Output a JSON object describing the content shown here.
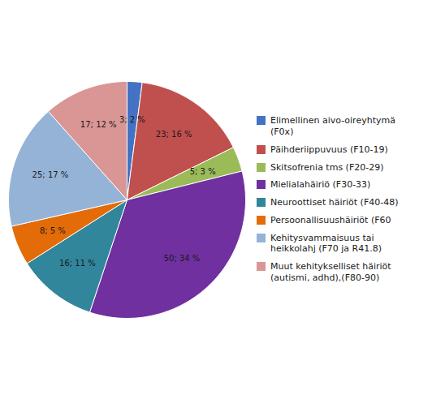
{
  "chart_data": {
    "type": "pie",
    "categories": [
      "Elimellinen aivo-oireyhtymä\n(F0x)",
      "Päihderiippuvuus (F10-19)",
      "Skitsofrenia tms (F20-29)",
      "Mielialahäiriö (F30-33)",
      "Neuroottiset häiriöt (F40-48)",
      "Persoonallisuushäiriöt (F60",
      "Kehitysvammaisuus tai\nheikkolahj (F70 ja R41.8)",
      "Muut kehitykselliset häiriöt\n(autismi, adhd),(F80-90)"
    ],
    "values": [
      3,
      23,
      5,
      50,
      16,
      8,
      25,
      17
    ],
    "value_labels": [
      "3; 2 %",
      "23; 16 %",
      "5; 3 %",
      "50; 34 %",
      "16; 11 %",
      "8; 5 %",
      "25; 17 %",
      "17; 12 %"
    ],
    "colors": [
      "#4472C4",
      "#C0504D",
      "#9BBB59",
      "#7030A0",
      "#31869B",
      "#E36C09",
      "#95B3D7",
      "#D99694"
    ],
    "data_labels": true,
    "legend": "right"
  }
}
